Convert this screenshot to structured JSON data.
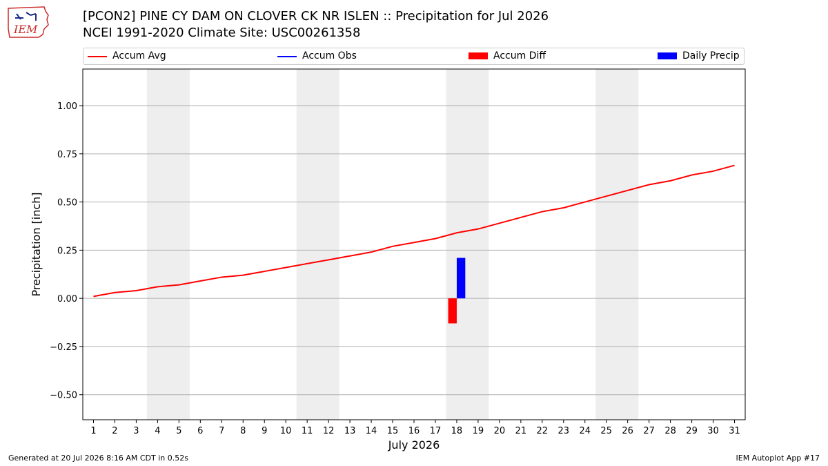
{
  "logo": {
    "text": "IEM"
  },
  "header": {
    "title_line1": "[PCON2] PINE CY DAM ON CLOVER CK NR ISLEN :: Precipitation for Jul 2026",
    "title_line2": "NCEI 1991-2020 Climate Site: USC00261358"
  },
  "legend": {
    "items": [
      {
        "label": "Accum Avg",
        "color": "#ff0000",
        "kind": "line"
      },
      {
        "label": "Accum Obs",
        "color": "#0000ff",
        "kind": "line"
      },
      {
        "label": "Accum Diff",
        "color": "#ff0000",
        "kind": "box"
      },
      {
        "label": "Daily Precip",
        "color": "#0000ff",
        "kind": "box"
      }
    ]
  },
  "footer": {
    "left": "Generated at 20 Jul 2026 8:16 AM CDT in 0.52s",
    "right": "IEM Autoplot App #17"
  },
  "chart_data": {
    "type": "line",
    "xlabel": "July 2026",
    "ylabel": "Precipitation [inch]",
    "xlim": [
      0.5,
      31.5
    ],
    "ylim": [
      -0.63,
      1.19
    ],
    "yticks": [
      -0.5,
      -0.25,
      0.0,
      0.25,
      0.5,
      0.75,
      1.0
    ],
    "ytick_labels": [
      "−0.50",
      "−0.25",
      "0.00",
      "0.25",
      "0.50",
      "0.75",
      "1.00"
    ],
    "xticks": [
      1,
      2,
      3,
      4,
      5,
      6,
      7,
      8,
      9,
      10,
      11,
      12,
      13,
      14,
      15,
      16,
      17,
      18,
      19,
      20,
      21,
      22,
      23,
      24,
      25,
      26,
      27,
      28,
      29,
      30,
      31
    ],
    "grid": "horizontal",
    "legend_position": "top",
    "weekend_shading": [
      [
        3.5,
        5.5
      ],
      [
        10.5,
        12.5
      ],
      [
        17.5,
        19.5
      ],
      [
        24.5,
        26.5
      ]
    ],
    "weekend_color": "#eeeeee",
    "series": [
      {
        "name": "Accum Avg",
        "type": "line",
        "color": "#ff0000",
        "x": [
          1,
          2,
          3,
          4,
          5,
          6,
          7,
          8,
          9,
          10,
          11,
          12,
          13,
          14,
          15,
          16,
          17,
          18,
          19,
          20,
          21,
          22,
          23,
          24,
          25,
          26,
          27,
          28,
          29,
          30,
          31
        ],
        "values": [
          0.01,
          0.03,
          0.04,
          0.06,
          0.07,
          0.09,
          0.11,
          0.12,
          0.14,
          0.16,
          0.18,
          0.2,
          0.22,
          0.24,
          0.27,
          0.29,
          0.31,
          0.34,
          0.36,
          0.39,
          0.42,
          0.45,
          0.47,
          0.5,
          0.53,
          0.56,
          0.59,
          0.61,
          0.64,
          0.66,
          0.69
        ]
      },
      {
        "name": "Accum Diff",
        "type": "bar",
        "color": "#ff0000",
        "x": [
          18
        ],
        "values": [
          -0.13
        ]
      },
      {
        "name": "Daily Precip",
        "type": "bar",
        "color": "#0000ff",
        "x": [
          18
        ],
        "values": [
          0.21
        ]
      }
    ]
  }
}
